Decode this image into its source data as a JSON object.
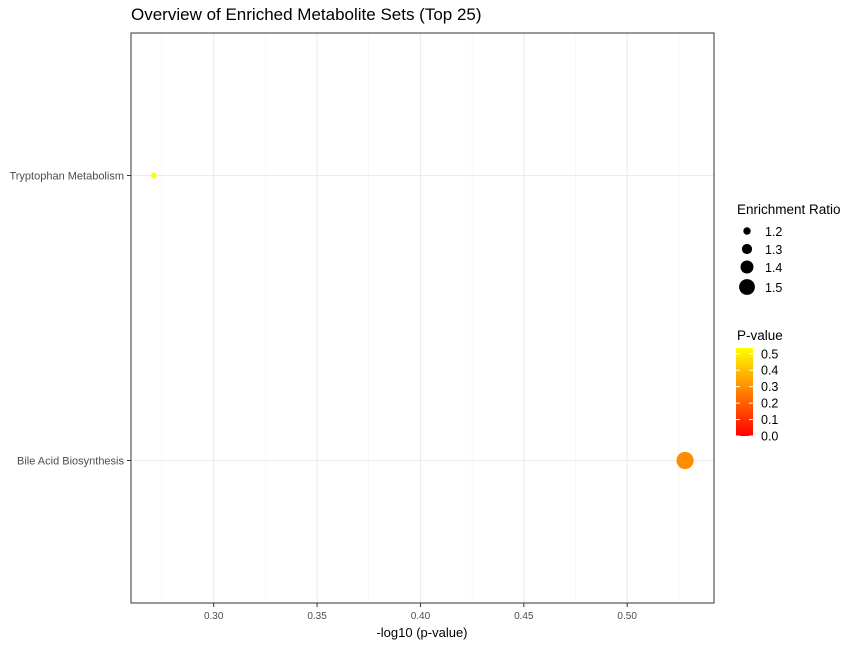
{
  "chart_data": {
    "type": "scatter",
    "title": "Overview of Enriched Metabolite Sets (Top 25)",
    "xlabel": "-log10 (p-value)",
    "ylabel": "",
    "xlim": [
      0.26,
      0.542
    ],
    "x_ticks": [
      0.3,
      0.35,
      0.4,
      0.45,
      0.5
    ],
    "x_tick_labels": [
      "0.30",
      "0.35",
      "0.40",
      "0.45",
      "0.50"
    ],
    "categories": [
      "Bile Acid Biosynthesis",
      "Tryptophan Metabolism"
    ],
    "grid": true,
    "points": [
      {
        "label": "Bile Acid Biosynthesis",
        "x": 0.528,
        "enrichment_ratio": 1.55,
        "p_value": 0.296
      },
      {
        "label": "Tryptophan Metabolism",
        "x": 0.271,
        "enrichment_ratio": 1.15,
        "p_value": 0.535
      }
    ],
    "size_legend": {
      "title": "Enrichment Ratio",
      "entries": [
        {
          "label": "1.2",
          "value": 1.2
        },
        {
          "label": "1.3",
          "value": 1.3
        },
        {
          "label": "1.4",
          "value": 1.4
        },
        {
          "label": "1.5",
          "value": 1.5
        }
      ]
    },
    "color_legend": {
      "title": "P-value",
      "labels": [
        "0.5",
        "0.4",
        "0.3",
        "0.2",
        "0.1",
        "0.0"
      ],
      "values": [
        0.5,
        0.4,
        0.3,
        0.2,
        0.1,
        0.0
      ],
      "range": [
        0,
        0.535
      ],
      "low_color": "#ff0000",
      "high_color": "#ffff00"
    },
    "legend_position": "right"
  }
}
